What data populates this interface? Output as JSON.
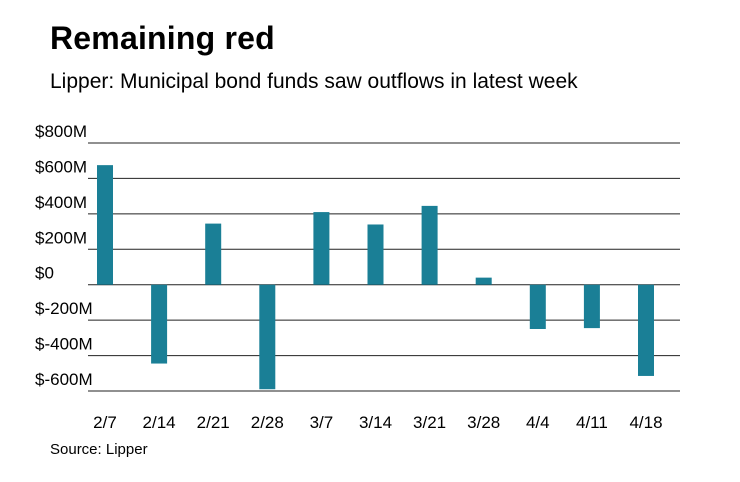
{
  "title": "Remaining red",
  "subtitle": "Lipper: Municipal bond funds saw outflows in latest week",
  "source": "Source: Lipper",
  "colors": {
    "bar": "#1a7f96",
    "grid": "#222222"
  },
  "chart_data": {
    "type": "bar",
    "categories": [
      "2/7",
      "2/14",
      "2/21",
      "2/28",
      "3/7",
      "3/14",
      "3/21",
      "3/28",
      "4/4",
      "4/11",
      "4/18"
    ],
    "values": [
      675,
      -445,
      345,
      -590,
      410,
      340,
      445,
      40,
      -250,
      -245,
      -515
    ],
    "unit": "$M",
    "ylim": [
      -600,
      800
    ],
    "yticks": [
      800,
      600,
      400,
      200,
      0,
      -200,
      -400,
      -600
    ],
    "ytick_labels": [
      "$800M",
      "$600M",
      "$400M",
      "$200M",
      "$0",
      "$-200M",
      "$-400M",
      "$-600M"
    ],
    "xlabel": "",
    "ylabel": "",
    "grid": true
  }
}
